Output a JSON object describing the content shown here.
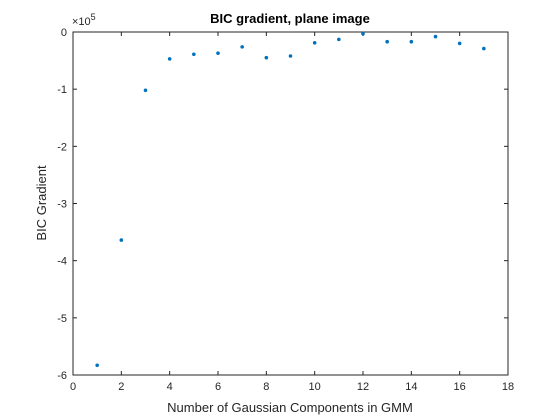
{
  "chart_data": {
    "type": "scatter",
    "title": "BIC gradient, plane image",
    "xlabel": "Number of Gaussian Components in GMM",
    "ylabel": "BIC Gradient",
    "y_exponent_base": "×10",
    "y_exponent_power": "5",
    "xlim": [
      0,
      18
    ],
    "ylim": [
      -6,
      0
    ],
    "xticks": [
      0,
      2,
      4,
      6,
      8,
      10,
      12,
      14,
      16,
      18
    ],
    "xtick_labels": [
      "0",
      "2",
      "4",
      "6",
      "8",
      "10",
      "12",
      "14",
      "16",
      "18"
    ],
    "yticks": [
      -6,
      -5,
      -4,
      -3,
      -2,
      -1,
      0
    ],
    "ytick_labels": [
      "-6",
      "-5",
      "-4",
      "-3",
      "-2",
      "-1",
      "0"
    ],
    "grid": false,
    "marker_color": "#0072BD",
    "series": [
      {
        "x": [
          1,
          2,
          3,
          4,
          5,
          6,
          7,
          8,
          9,
          10,
          11,
          12,
          13,
          14,
          15,
          16,
          17
        ],
        "y": [
          -5.83,
          -3.64,
          -1.02,
          -0.47,
          -0.39,
          -0.37,
          -0.26,
          -0.45,
          -0.42,
          -0.19,
          -0.13,
          -0.03,
          -0.17,
          -0.17,
          -0.08,
          -0.2,
          -0.29
        ]
      }
    ]
  }
}
